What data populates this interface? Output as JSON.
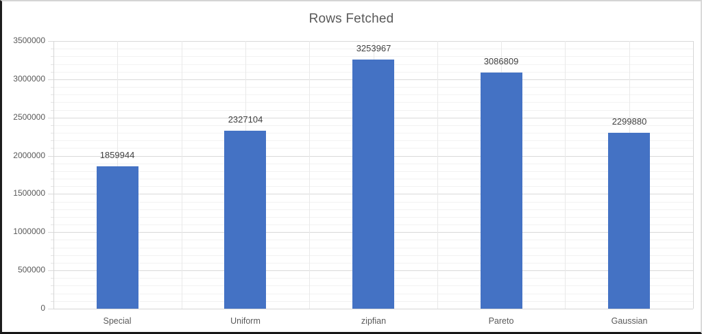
{
  "chart_data": {
    "type": "bar",
    "title": "Rows Fetched",
    "categories": [
      "Special",
      "Uniform",
      "zipfian",
      "Pareto",
      "Gaussian"
    ],
    "values": [
      1859944,
      2327104,
      3253967,
      3086809,
      2299880
    ],
    "data_labels": [
      "1859944",
      "2327104",
      "3253967",
      "3086809",
      "2299880"
    ],
    "xlabel": "",
    "ylabel": "",
    "ylim": [
      0,
      3500000
    ],
    "y_major_step": 500000,
    "y_minor_step": 100000,
    "y_tick_labels": [
      "0",
      "500000",
      "1000000",
      "1500000",
      "2000000",
      "2500000",
      "3000000",
      "3500000"
    ],
    "legend": "none",
    "grid": "horizontal major+minor, vertical half-category",
    "colors": {
      "bar": "#4472c4",
      "title_text": "#595959",
      "axis_text": "#595959",
      "data_label_text": "#3f3f3f",
      "gridline_major": "#d9d9d9",
      "gridline_minor": "#f2f2f2",
      "gridline_vertical": "#e9e9e9",
      "axis_line": "#d6d6d6"
    }
  }
}
